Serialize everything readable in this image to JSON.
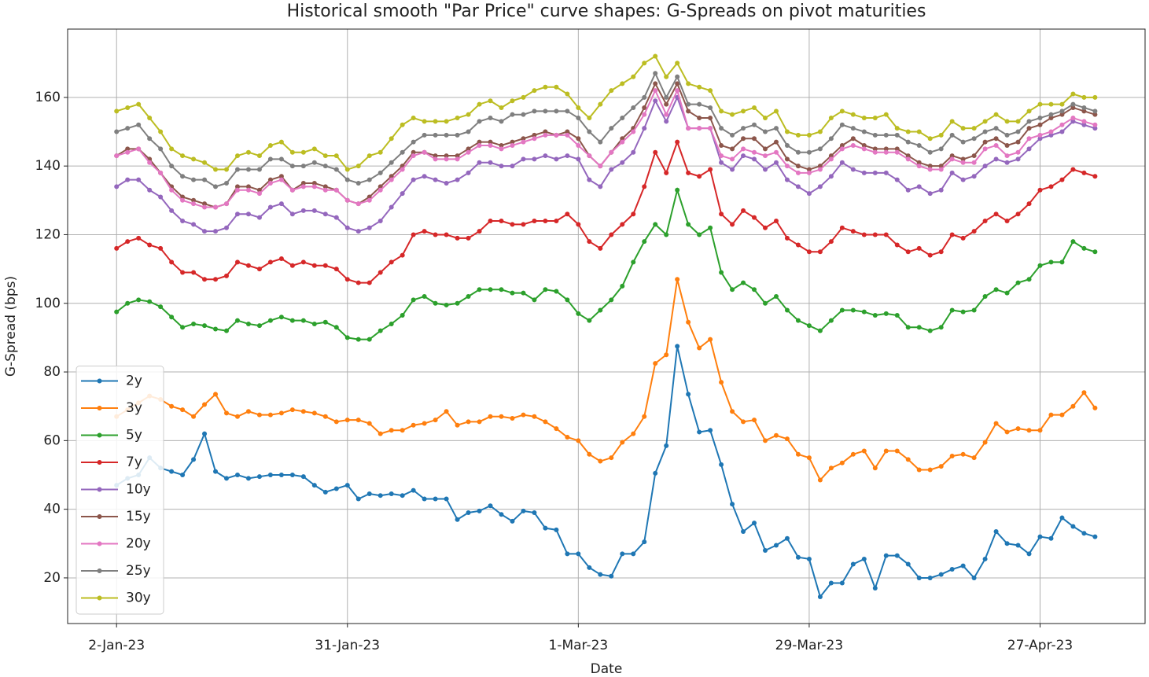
{
  "chart_data": {
    "type": "line",
    "title": "Historical smooth \"Par Price\" curve shapes: G-Spreads on pivot maturities",
    "x_label": "Date",
    "y_label": "G-Spread (bps)",
    "x": [
      0,
      1,
      2,
      3,
      4,
      5,
      6,
      7,
      8,
      9,
      10,
      11,
      12,
      13,
      14,
      15,
      16,
      17,
      18,
      19,
      20,
      21,
      22,
      23,
      24,
      25,
      26,
      27,
      28,
      29,
      30,
      31,
      32,
      33,
      34,
      35,
      36,
      37,
      38,
      39,
      40,
      41,
      42,
      43,
      44,
      45,
      46,
      47,
      48,
      49,
      50,
      51,
      52,
      53,
      54,
      55,
      56,
      57,
      58,
      59,
      60,
      61,
      62,
      63,
      64,
      65,
      66,
      67,
      68,
      69,
      70,
      71,
      72,
      73,
      74,
      75,
      76,
      77,
      78,
      79,
      80,
      81,
      82,
      83,
      84,
      85,
      86,
      87,
      88,
      89
    ],
    "xlim": [
      -4.45,
      93.55
    ],
    "xticks": [
      {
        "value": 0,
        "label": "2-Jan-23"
      },
      {
        "value": 21,
        "label": "31-Jan-23"
      },
      {
        "value": 42,
        "label": "1-Mar-23"
      },
      {
        "value": 63,
        "label": "29-Mar-23"
      },
      {
        "value": 84,
        "label": "27-Apr-23"
      }
    ],
    "ylim": [
      6.7,
      179.9
    ],
    "yticks": [
      20,
      40,
      60,
      80,
      100,
      120,
      140,
      160
    ],
    "grid": true,
    "legend": "lower left",
    "series": [
      {
        "name": "2y",
        "color": "#1f77b4",
        "values": [
          47,
          49,
          50,
          55,
          52,
          51,
          50,
          54.5,
          62,
          51,
          49,
          50,
          49,
          49.5,
          50,
          50,
          50,
          49.5,
          47,
          45,
          46,
          47,
          43,
          44.5,
          44,
          44.5,
          44,
          45.5,
          43,
          43,
          43,
          37,
          39,
          39.5,
          41,
          38.5,
          36.5,
          39.5,
          39,
          34.5,
          34,
          27,
          27,
          23,
          21,
          20.5,
          27,
          27,
          30.5,
          50.5,
          58.5,
          87.5,
          73.5,
          62.5,
          63,
          53,
          41.5,
          33.5,
          36,
          28,
          29.5,
          31.5,
          26,
          25.5,
          14.5,
          18.5,
          18.5,
          24,
          25.5,
          17,
          26.5,
          26.5,
          24,
          20,
          20,
          21,
          22.5,
          23.5,
          20,
          25.5,
          33.5,
          30,
          29.5,
          27,
          32,
          31.5,
          37.5,
          35,
          33,
          32
        ]
      },
      {
        "name": "3y",
        "color": "#ff7f0e",
        "values": [
          67,
          69,
          71,
          73,
          72,
          70,
          69,
          67,
          70.5,
          73.5,
          68,
          67,
          68.5,
          67.5,
          67.5,
          68,
          69,
          68.5,
          68,
          67,
          65.5,
          66,
          66,
          65,
          62,
          63,
          63,
          64.5,
          65,
          66,
          68.5,
          64.5,
          65.5,
          65.5,
          67,
          67,
          66.5,
          67.5,
          67,
          65.5,
          63.5,
          61,
          60,
          56,
          54,
          55,
          59.5,
          62,
          67,
          82.5,
          85,
          107,
          94.5,
          87,
          89.5,
          77,
          68.5,
          65.5,
          66,
          60,
          61.5,
          60.5,
          56,
          55,
          48.5,
          52,
          53.5,
          56,
          57,
          52,
          57,
          57,
          54.5,
          51.5,
          51.5,
          52.5,
          55.5,
          56,
          55,
          59.5,
          65,
          62.5,
          63.5,
          63,
          63,
          67.5,
          67.5,
          70,
          74,
          69.5
        ]
      },
      {
        "name": "5y",
        "color": "#2ca02c",
        "values": [
          97.5,
          100,
          101,
          100.5,
          99,
          96,
          93,
          94,
          93.5,
          92.5,
          92,
          95,
          94,
          93.5,
          95,
          96,
          95,
          95,
          94,
          94.5,
          93,
          90,
          89.5,
          89.5,
          92,
          94,
          96.5,
          101,
          102,
          100,
          99.5,
          100,
          102,
          104,
          104,
          104,
          103,
          103,
          101,
          104,
          103.5,
          101,
          97,
          95,
          98,
          101,
          105,
          112,
          118,
          123,
          120,
          133,
          123,
          120,
          122,
          109,
          104,
          106,
          104,
          100,
          102,
          98,
          95,
          93.5,
          92,
          95,
          98,
          98,
          97.5,
          96.5,
          97,
          96.5,
          93,
          93,
          92,
          93,
          98,
          97.5,
          98,
          102,
          104,
          103,
          106,
          107,
          111,
          112,
          112,
          118,
          116,
          115
        ]
      },
      {
        "name": "7y",
        "color": "#d62728",
        "values": [
          116,
          118,
          119,
          117,
          116,
          112,
          109,
          109,
          107,
          107,
          108,
          112,
          111,
          110,
          112,
          113,
          111,
          112,
          111,
          111,
          110,
          107,
          106,
          106,
          109,
          112,
          114,
          120,
          121,
          120,
          120,
          119,
          119,
          121,
          124,
          124,
          123,
          123,
          124,
          124,
          124,
          126,
          123,
          118,
          116,
          120,
          123,
          126,
          134,
          144,
          138,
          147,
          138,
          137,
          139,
          126,
          123,
          127,
          125,
          122,
          124,
          119,
          117,
          115,
          115,
          118,
          122,
          121,
          120,
          120,
          120,
          117,
          115,
          116,
          114,
          115,
          120,
          119,
          121,
          124,
          126,
          124,
          126,
          129,
          133,
          134,
          136,
          139,
          138,
          137
        ]
      },
      {
        "name": "10y",
        "color": "#9467bd",
        "values": [
          134,
          136,
          136,
          133,
          131,
          127,
          124,
          123,
          121,
          121,
          122,
          126,
          126,
          125,
          128,
          129,
          126,
          127,
          127,
          126,
          125,
          122,
          121,
          122,
          124,
          128,
          132,
          136,
          137,
          136,
          135,
          136,
          138,
          141,
          141,
          140,
          140,
          142,
          142,
          143,
          142,
          143,
          142,
          136,
          134,
          139,
          141,
          144,
          151,
          159,
          153,
          160,
          151,
          151,
          151,
          141,
          139,
          143,
          142,
          139,
          141,
          136,
          134,
          132,
          134,
          137,
          141,
          139,
          138,
          138,
          138,
          136,
          133,
          134,
          132,
          133,
          138,
          136,
          137,
          140,
          142,
          141,
          142,
          145,
          148,
          149,
          150,
          153,
          152,
          151
        ]
      },
      {
        "name": "15y",
        "color": "#8c564b",
        "values": [
          143,
          145,
          145,
          142,
          138,
          134,
          131,
          130,
          129,
          128,
          129,
          134,
          134,
          133,
          136,
          137,
          133,
          135,
          135,
          134,
          133,
          130,
          129,
          131,
          134,
          137,
          140,
          144,
          144,
          143,
          143,
          143,
          145,
          147,
          147,
          146,
          147,
          148,
          149,
          150,
          149,
          150,
          148,
          143,
          140,
          144,
          148,
          151,
          157,
          164,
          158,
          164,
          156,
          154,
          154,
          146,
          145,
          148,
          148,
          145,
          147,
          142,
          140,
          139,
          140,
          143,
          146,
          148,
          146,
          145,
          145,
          145,
          143,
          141,
          140,
          140,
          143,
          142,
          143,
          147,
          148,
          146,
          147,
          151,
          152,
          154,
          155,
          157,
          156,
          155
        ]
      },
      {
        "name": "20y",
        "color": "#e377c2",
        "values": [
          143,
          144,
          145,
          141,
          138,
          133,
          130,
          129,
          128,
          128,
          129,
          133,
          133,
          132,
          135,
          136,
          133,
          134,
          134,
          133,
          133,
          130,
          129,
          130,
          133,
          136,
          139,
          143,
          144,
          142,
          142,
          142,
          144,
          146,
          146,
          145,
          146,
          147,
          148,
          149,
          149,
          149,
          146,
          143,
          140,
          144,
          147,
          150,
          155,
          162,
          155,
          162,
          151,
          151,
          151,
          143,
          142,
          145,
          144,
          143,
          144,
          140,
          138,
          138,
          139,
          142,
          145,
          146,
          145,
          144,
          144,
          144,
          142,
          140,
          139,
          139,
          142,
          141,
          141,
          145,
          146,
          143,
          144,
          148,
          149,
          150,
          152,
          154,
          153,
          152
        ]
      },
      {
        "name": "25y",
        "color": "#7f7f7f",
        "values": [
          150,
          151,
          152,
          148,
          145,
          140,
          137,
          136,
          136,
          134,
          135,
          139,
          139,
          139,
          142,
          142,
          140,
          140,
          141,
          140,
          139,
          136,
          135,
          136,
          138,
          141,
          144,
          147,
          149,
          149,
          149,
          149,
          150,
          153,
          154,
          153,
          155,
          155,
          156,
          156,
          156,
          156,
          154,
          150,
          147,
          151,
          154,
          157,
          160,
          167,
          160,
          166,
          158,
          158,
          157,
          151,
          149,
          151,
          152,
          150,
          151,
          146,
          144,
          144,
          145,
          148,
          152,
          151,
          150,
          149,
          149,
          149,
          147,
          146,
          144,
          145,
          149,
          147,
          148,
          150,
          151,
          149,
          150,
          153,
          154,
          155,
          156,
          158,
          157,
          156
        ]
      },
      {
        "name": "30y",
        "color": "#bcbd22",
        "values": [
          156,
          157,
          158,
          154,
          150,
          145,
          143,
          142,
          141,
          139,
          139,
          143,
          144,
          143,
          146,
          147,
          144,
          144,
          145,
          143,
          143,
          139,
          140,
          143,
          144,
          148,
          152,
          154,
          153,
          153,
          153,
          154,
          155,
          158,
          159,
          157,
          159,
          160,
          162,
          163,
          163,
          161,
          157,
          154,
          158,
          162,
          164,
          166,
          170,
          172,
          166,
          170,
          164,
          163,
          162,
          156,
          155,
          156,
          157,
          154,
          156,
          150,
          149,
          149,
          150,
          154,
          156,
          155,
          154,
          154,
          155,
          151,
          150,
          150,
          148,
          149,
          153,
          151,
          151,
          153,
          155,
          153,
          153,
          156,
          158,
          158,
          158,
          161,
          160,
          160
        ]
      }
    ]
  }
}
